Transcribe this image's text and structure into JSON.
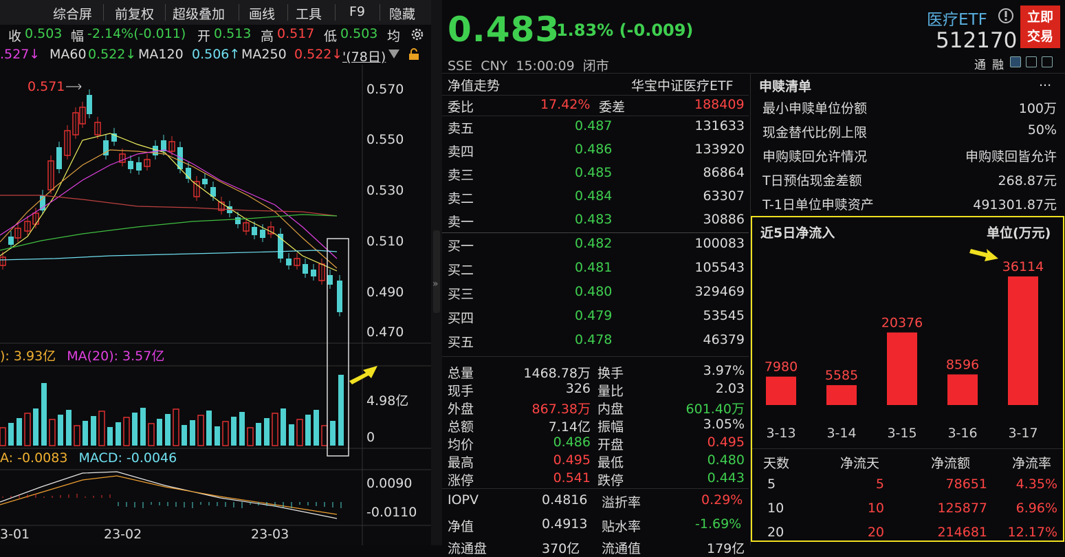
{
  "menu": {
    "items": [
      "综合屏",
      "前复权",
      "超级叠加",
      "画线",
      "工具",
      "F9",
      "隐藏"
    ]
  },
  "quote_bar": {
    "close_label": "收",
    "close": "0.503",
    "amp_label": "幅",
    "amp": "-2.14%(-0.011)",
    "open_label": "开",
    "open": "0.513",
    "high_label": "高",
    "high": "0.517",
    "low_label": "低",
    "low": "0.503",
    "avg_label": "均"
  },
  "ma_bar": {
    "ma30": ".527↓",
    "ma60_label": "MA60",
    "ma60": "0.522↓",
    "ma120_label": "MA120",
    "ma120": "0.506↑",
    "ma250_label": "MA250",
    "ma250": "0.522↓",
    "period": "'(78日)"
  },
  "kline": {
    "price_ticks": [
      "0.570",
      "0.550",
      "0.530",
      "0.510",
      "0.490",
      "0.470"
    ],
    "high_note": "0.571",
    "vol_bar": {
      "left": "): 3.93亿",
      "ma20": "MA(20): 3.57亿"
    },
    "vol_ticks": [
      "4.98亿",
      "0"
    ],
    "macd_bar": {
      "a": "A: -0.0083",
      "macd": "MACD: -0.0046"
    },
    "macd_ticks": [
      "0.0090",
      "-0.0110"
    ],
    "date_ticks": [
      "3-01",
      "23-02",
      "23-03"
    ]
  },
  "header": {
    "price": "0.483",
    "change": "-1.83% (-0.009)",
    "name": "医疗ETF",
    "code": "512170",
    "meta": "SSE  CNY  15:00:09  闭市",
    "buy_btn": [
      "立即",
      "交易"
    ],
    "tong": "通",
    "rong": "融"
  },
  "orderbook": {
    "nav_label": "净值走势",
    "index_name": "华宝中证医疗ETF",
    "wb_label": "委比",
    "wb": "17.42%",
    "wc_label": "委差",
    "wc": "188409",
    "asks": [
      {
        "label": "卖五",
        "price": "0.487",
        "vol": "131633"
      },
      {
        "label": "卖四",
        "price": "0.486",
        "vol": "133920"
      },
      {
        "label": "卖三",
        "price": "0.485",
        "vol": "86864"
      },
      {
        "label": "卖二",
        "price": "0.484",
        "vol": "63307"
      },
      {
        "label": "卖一",
        "price": "0.483",
        "vol": "30886"
      }
    ],
    "bids": [
      {
        "label": "买一",
        "price": "0.482",
        "vol": "100083"
      },
      {
        "label": "买二",
        "price": "0.481",
        "vol": "105543"
      },
      {
        "label": "买三",
        "price": "0.480",
        "vol": "329469"
      },
      {
        "label": "买四",
        "price": "0.479",
        "vol": "53545"
      },
      {
        "label": "买五",
        "price": "0.478",
        "vol": "46379"
      }
    ]
  },
  "stats": [
    {
      "l1": "总量",
      "v1": "1468.78万",
      "c1": "w",
      "l2": "换手",
      "v2": "3.97%",
      "c2": "w"
    },
    {
      "l1": "现手",
      "v1": "326",
      "c1": "w",
      "l2": "量比",
      "v2": "2.03",
      "c2": "w"
    },
    {
      "l1": "外盘",
      "v1": "867.38万",
      "c1": "r",
      "l2": "内盘",
      "v2": "601.40万",
      "c2": "g"
    },
    {
      "l1": "总额",
      "v1": "7.14亿",
      "c1": "w",
      "l2": "振幅",
      "v2": "3.05%",
      "c2": "w"
    },
    {
      "l1": "均价",
      "v1": "0.486",
      "c1": "g",
      "l2": "开盘",
      "v2": "0.495",
      "c2": "r"
    },
    {
      "l1": "最高",
      "v1": "0.495",
      "c1": "r",
      "l2": "最低",
      "v2": "0.480",
      "c2": "g"
    },
    {
      "l1": "涨停",
      "v1": "0.541",
      "c1": "r",
      "l2": "跌停",
      "v2": "0.443",
      "c2": "g"
    }
  ],
  "iopv": {
    "l1": "IOPV",
    "v1": "0.4816",
    "l2": "溢折率",
    "v2": "0.29%"
  },
  "nav": {
    "l1": "净值",
    "v1": "0.4913",
    "l2": "贴水率",
    "v2": "-1.69%"
  },
  "bottom_cut": {
    "l1": "流通盘",
    "v1": "370亿",
    "l2": "流通值",
    "v2": "179亿"
  },
  "subscription": {
    "title": "申赎清单",
    "more": "...",
    "rows": [
      {
        "k": "最小申赎单位份额",
        "v": "100万"
      },
      {
        "k": "现金替代比例上限",
        "v": "50%"
      },
      {
        "k": "申购赎回允许情况",
        "v": "申购赎回皆允许"
      },
      {
        "k": "T日预估现金差额",
        "v": "268.87元"
      },
      {
        "k": "T-1日单位申赎资产",
        "v": "491301.87元"
      }
    ]
  },
  "flow": {
    "title": "近5日净流入",
    "unit": "单位(万元)",
    "table_head": [
      "天数",
      "净流天",
      "净流额",
      "净流率"
    ],
    "table": [
      [
        "5",
        "5",
        "78651",
        "4.35%"
      ],
      [
        "10",
        "10",
        "125877",
        "6.96%"
      ],
      [
        "20",
        "20",
        "214681",
        "12.17%"
      ]
    ]
  },
  "chart_data": {
    "type": "bar",
    "title": "近5日净流入",
    "ylabel": "单位(万元)",
    "categories": [
      "3-13",
      "3-14",
      "3-15",
      "3-16",
      "3-17"
    ],
    "values": [
      7980,
      5585,
      20376,
      8596,
      36114
    ],
    "color": "#f0282e"
  }
}
